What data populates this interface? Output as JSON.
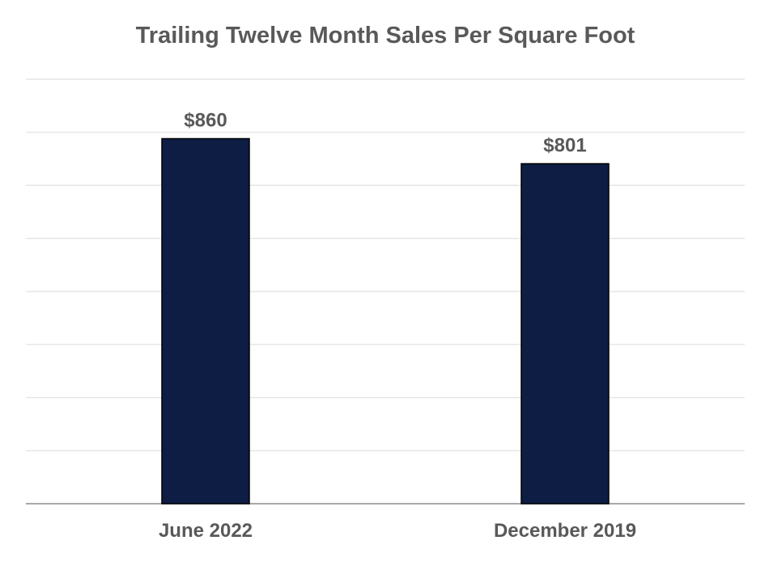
{
  "chart_data": {
    "type": "bar",
    "title": "Trailing Twelve Month Sales Per Square Foot",
    "categories": [
      "June 2022",
      "December 2019"
    ],
    "values": [
      860,
      801
    ],
    "data_labels": [
      "$860",
      "$801"
    ],
    "xlabel": "",
    "ylabel": "",
    "ylim": [
      0,
      1000
    ],
    "y_gridline_step": 125,
    "y_tick_labels_shown": false,
    "grid": true,
    "legend": "none"
  },
  "colors": {
    "bar_fill": "#0d1d44",
    "bar_stroke": "#000000",
    "text": "#595959",
    "gridline": "#e6e6e6",
    "axis_line": "#8c8c8c"
  }
}
